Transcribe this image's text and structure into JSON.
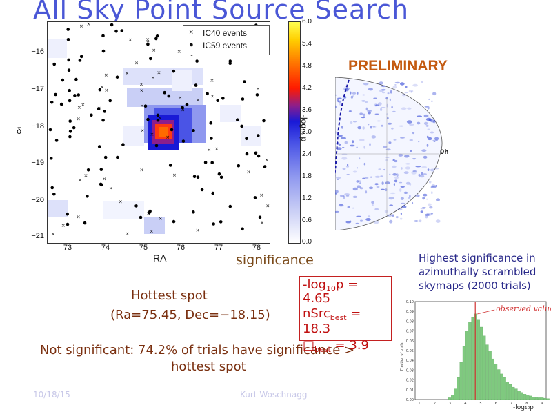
{
  "slide": {
    "title": "All  Sky Point Source Search",
    "preliminary_label": "PRELIMINARY",
    "footer_date": "10/18/15",
    "footer_author": "Kurt Woschnagg"
  },
  "main_plot": {
    "ylabel": "δ",
    "xlabel": "RA",
    "y_ticks": [
      "−16",
      "−17",
      "−18",
      "−19",
      "−20",
      "−21"
    ],
    "x_ticks": [
      "73",
      "74",
      "75",
      "76",
      "77",
      "78"
    ],
    "legend": [
      {
        "marker": "×",
        "label": "IC40 events"
      },
      {
        "marker": "●",
        "label": "IC59 events"
      }
    ],
    "colorbar": {
      "label": "-log₁₀ p",
      "ticks": [
        "6.0",
        "5.4",
        "4.8",
        "4.2",
        "3.6",
        "3.0",
        "2.4",
        "1.8",
        "1.2",
        "0.6",
        "0.0"
      ]
    }
  },
  "skymap": {
    "label": "0h"
  },
  "text": {
    "significance_fragment": "significance",
    "hottest_title": "Hottest spot",
    "hottest_coords": "(Ra=75.45, Dec=−18.15)",
    "not_significant_line1": "Not significant: 74.2% of trials have significance > ",
    "not_significant_line2": "hottest spot"
  },
  "result_box": {
    "line1_prefix": "-log",
    "line1_sub": "10",
    "line1_suffix": "p =",
    "line2": "4.65",
    "line3_prefix": "nSrc",
    "line3_sub": "best",
    "line3_suffix": " =",
    "line4": "18.3",
    "line5_prefix": "□",
    "line5_sub": "best",
    "line5_suffix": " = 3.9"
  },
  "histogram": {
    "title_lines": [
      "Highest significance in",
      "azimuthally scrambled",
      "skymaps (2000 trials)"
    ],
    "ylabel": "Fraction of trials",
    "xlabel": "-log₁₀p",
    "annotation": "observed value",
    "observed_value": 4.65,
    "y_ticks": [
      "0.10",
      "0.09",
      "0.08",
      "0.07",
      "0.06",
      "0.05",
      "0.04",
      "0.03",
      "0.02",
      "0.01",
      "0.00"
    ],
    "x_ticks": [
      "1",
      "2",
      "3",
      "4",
      "5",
      "6",
      "7",
      "8",
      "9"
    ]
  },
  "colors": {
    "title": "#4a57d6",
    "accent_orange": "#c45a10",
    "text_brown": "#7a3010",
    "result_red": "#c01010",
    "bar_green": "#7fc97f",
    "observed_line": "#d03030"
  }
}
